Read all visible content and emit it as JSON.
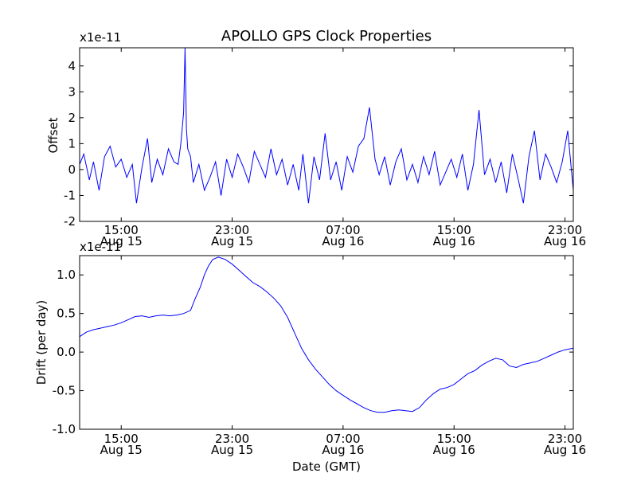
{
  "title": "APOLLO GPS Clock Properties",
  "xlabel": "Date (GMT)",
  "chart_data": [
    {
      "type": "line",
      "title": "APOLLO GPS Clock Properties",
      "ylabel": "Offset",
      "exponent_label": "x1e-11",
      "xlabel": "",
      "x_unit": "hours since Aug 15 00:00 GMT",
      "xlim": [
        12,
        47.6
      ],
      "ylim": [
        -2,
        4.7
      ],
      "grid": false,
      "color": "#0000ff",
      "yticks": [
        {
          "value": -2,
          "label": "-2"
        },
        {
          "value": -1,
          "label": "-1"
        },
        {
          "value": 0,
          "label": "0"
        },
        {
          "value": 1,
          "label": "1"
        },
        {
          "value": 2,
          "label": "2"
        },
        {
          "value": 3,
          "label": "3"
        },
        {
          "value": 4,
          "label": "4"
        }
      ],
      "xticks": [
        {
          "value": 15,
          "time": "15:00",
          "date": "Aug 15"
        },
        {
          "value": 23,
          "time": "23:00",
          "date": "Aug 15"
        },
        {
          "value": 31,
          "time": "07:00",
          "date": "Aug 16"
        },
        {
          "value": 39,
          "time": "15:00",
          "date": "Aug 16"
        },
        {
          "value": 47,
          "time": "23:00",
          "date": "Aug 16"
        }
      ],
      "series": [
        {
          "x": [
            12.0,
            12.3,
            12.7,
            13.0,
            13.4,
            13.8,
            14.2,
            14.6,
            15.0,
            15.4,
            15.8,
            16.1,
            16.5,
            16.9,
            17.2,
            17.6,
            18.0,
            18.4,
            18.8,
            19.1,
            19.3,
            19.5,
            19.6,
            19.7,
            19.8,
            20.0,
            20.2,
            20.6,
            21.0,
            21.4,
            21.8,
            22.2,
            22.6,
            23.0,
            23.4,
            23.8,
            24.2,
            24.6,
            25.0,
            25.4,
            25.8,
            26.2,
            26.6,
            27.0,
            27.4,
            27.8,
            28.1,
            28.5,
            28.9,
            29.3,
            29.7,
            30.1,
            30.5,
            30.9,
            31.3,
            31.7,
            32.1,
            32.5,
            32.9,
            33.3,
            33.6,
            34.0,
            34.4,
            34.8,
            35.2,
            35.6,
            36.0,
            36.4,
            36.8,
            37.2,
            37.6,
            38.0,
            38.4,
            38.8,
            39.2,
            39.6,
            40.0,
            40.4,
            40.8,
            41.2,
            41.6,
            42.0,
            42.4,
            42.8,
            43.2,
            43.6,
            44.0,
            44.4,
            44.8,
            45.2,
            45.6,
            46.0,
            46.4,
            46.8,
            47.2,
            47.6
          ],
          "y": [
            0.2,
            0.6,
            -0.4,
            0.3,
            -0.8,
            0.5,
            0.9,
            0.1,
            0.4,
            -0.3,
            0.2,
            -1.3,
            0.1,
            1.2,
            -0.5,
            0.4,
            -0.2,
            0.8,
            0.3,
            0.2,
            1.0,
            2.2,
            4.7,
            1.6,
            0.8,
            0.5,
            -0.5,
            0.2,
            -0.8,
            -0.3,
            0.3,
            -1.0,
            0.4,
            -0.3,
            0.6,
            0.1,
            -0.5,
            0.7,
            0.2,
            -0.3,
            0.8,
            -0.2,
            0.4,
            -0.6,
            0.2,
            -0.8,
            0.6,
            -1.3,
            0.5,
            -0.4,
            1.4,
            -0.4,
            0.3,
            -0.8,
            0.5,
            -0.1,
            0.9,
            1.2,
            2.4,
            0.4,
            -0.2,
            0.5,
            -0.6,
            0.3,
            0.8,
            -0.4,
            0.2,
            -0.5,
            0.5,
            -0.2,
            0.7,
            -0.6,
            -0.1,
            0.4,
            -0.3,
            0.6,
            -0.8,
            0.2,
            2.3,
            -0.2,
            0.4,
            -0.5,
            0.3,
            -0.9,
            0.6,
            -0.3,
            -1.3,
            0.5,
            1.5,
            -0.4,
            0.6,
            0.1,
            -0.5,
            0.3,
            1.5,
            -0.8
          ]
        }
      ]
    },
    {
      "type": "line",
      "ylabel": "Drift (per day)",
      "exponent_label": "x1e-11",
      "xlabel": "Date (GMT)",
      "x_unit": "hours since Aug 15 00:00 GMT",
      "xlim": [
        12,
        47.6
      ],
      "ylim": [
        -1.0,
        1.25
      ],
      "grid": false,
      "color": "#0000ff",
      "yticks": [
        {
          "value": -1.0,
          "label": "-1.0"
        },
        {
          "value": -0.5,
          "label": "-0.5"
        },
        {
          "value": 0.0,
          "label": "0.0"
        },
        {
          "value": 0.5,
          "label": "0.5"
        },
        {
          "value": 1.0,
          "label": "1.0"
        }
      ],
      "xticks": [
        {
          "value": 15,
          "time": "15:00",
          "date": "Aug 15"
        },
        {
          "value": 23,
          "time": "23:00",
          "date": "Aug 15"
        },
        {
          "value": 31,
          "time": "07:00",
          "date": "Aug 16"
        },
        {
          "value": 39,
          "time": "15:00",
          "date": "Aug 16"
        },
        {
          "value": 47,
          "time": "23:00",
          "date": "Aug 16"
        }
      ],
      "series": [
        {
          "x": [
            12.0,
            12.5,
            13.0,
            13.5,
            14.0,
            14.5,
            15.0,
            15.5,
            16.0,
            16.5,
            17.0,
            17.5,
            18.0,
            18.5,
            19.0,
            19.5,
            20.0,
            20.3,
            20.7,
            21.0,
            21.3,
            21.6,
            22.0,
            22.5,
            23.0,
            23.5,
            24.0,
            24.5,
            25.0,
            25.5,
            26.0,
            26.5,
            27.0,
            27.5,
            28.0,
            28.5,
            29.0,
            29.5,
            30.0,
            30.5,
            31.0,
            31.5,
            32.0,
            32.5,
            33.0,
            33.5,
            34.0,
            34.5,
            35.0,
            35.5,
            36.0,
            36.5,
            37.0,
            37.5,
            38.0,
            38.5,
            39.0,
            39.5,
            40.0,
            40.5,
            41.0,
            41.5,
            42.0,
            42.5,
            43.0,
            43.5,
            44.0,
            44.5,
            45.0,
            45.5,
            46.0,
            46.5,
            47.0,
            47.6
          ],
          "y": [
            0.2,
            0.26,
            0.29,
            0.31,
            0.33,
            0.35,
            0.38,
            0.42,
            0.46,
            0.47,
            0.45,
            0.47,
            0.48,
            0.47,
            0.48,
            0.5,
            0.54,
            0.68,
            0.84,
            1.0,
            1.12,
            1.2,
            1.23,
            1.2,
            1.14,
            1.06,
            0.98,
            0.9,
            0.85,
            0.78,
            0.7,
            0.6,
            0.45,
            0.25,
            0.05,
            -0.1,
            -0.22,
            -0.32,
            -0.42,
            -0.5,
            -0.56,
            -0.62,
            -0.67,
            -0.72,
            -0.76,
            -0.78,
            -0.78,
            -0.76,
            -0.75,
            -0.76,
            -0.77,
            -0.72,
            -0.62,
            -0.54,
            -0.48,
            -0.46,
            -0.42,
            -0.35,
            -0.28,
            -0.24,
            -0.17,
            -0.12,
            -0.08,
            -0.1,
            -0.18,
            -0.2,
            -0.16,
            -0.14,
            -0.12,
            -0.08,
            -0.04,
            0.0,
            0.03,
            0.05
          ]
        }
      ]
    }
  ]
}
